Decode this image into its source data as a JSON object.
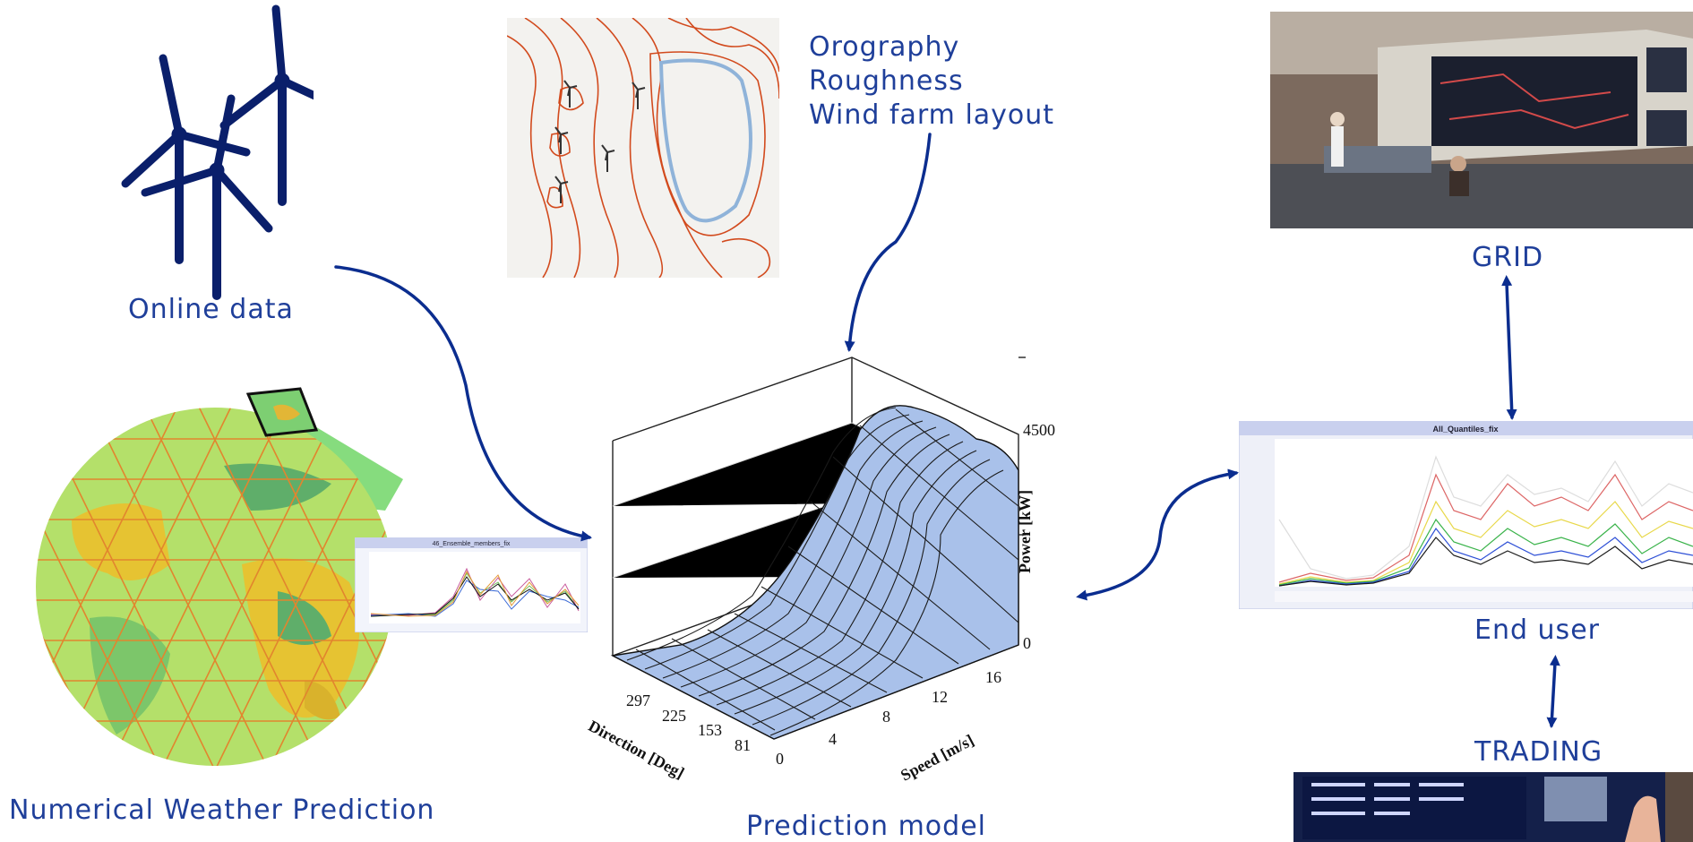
{
  "labels": {
    "online_data": "Online data",
    "nwp": "Numerical Weather Prediction",
    "prediction_model": "Prediction model",
    "grid": "GRID",
    "end_user": "End user",
    "trading": "TRADING",
    "terrain_lines": [
      "Orography",
      "Roughness",
      "Wind farm layout"
    ]
  },
  "surface_plot": {
    "z_label": "Power [kW]",
    "x_label": "Speed [m/s]",
    "y_label": "Direction [Deg]",
    "z_ticks": [
      "4500",
      "0"
    ],
    "speed_ticks": [
      "0",
      "4",
      "8",
      "12",
      "16"
    ],
    "direction_ticks": [
      "297",
      "225",
      "153",
      "81"
    ]
  },
  "chart_titles": {
    "ensemble": "46_Ensemble_members_fix",
    "quantiles": "All_Quantiles_fix"
  },
  "colors": {
    "label": "#1f3f9a",
    "arrow": "#0b2d8f",
    "turbine": "#0a1f6b",
    "surface": "#a9c1ea",
    "contour": "#d24a1d",
    "lake": "#8fb3d9"
  }
}
